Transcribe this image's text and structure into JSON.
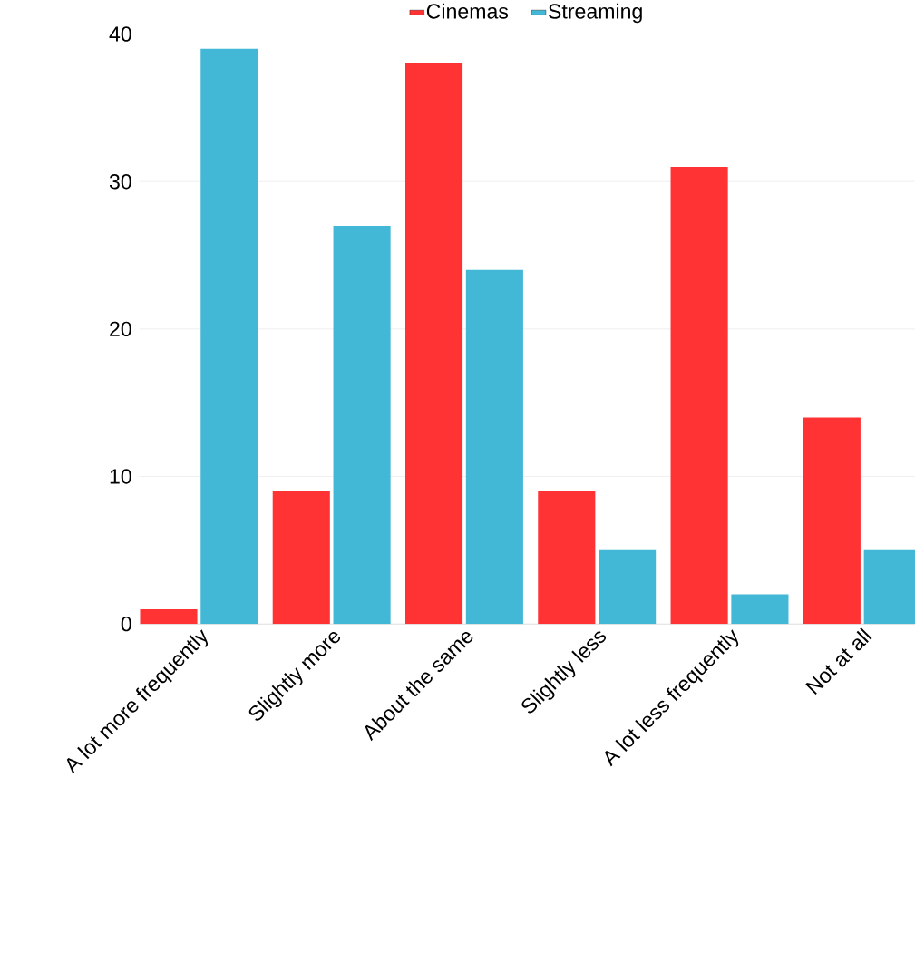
{
  "chart_data": {
    "type": "bar",
    "categories": [
      "A lot more frequently",
      "Slightly more",
      "About the same",
      "Slightly less",
      "A lot less frequently",
      "Not at all"
    ],
    "series": [
      {
        "name": "Cinemas",
        "color": "#ff3333",
        "values": [
          1,
          9,
          38,
          9,
          31,
          14
        ]
      },
      {
        "name": "Streaming",
        "color": "#42b8d6",
        "values": [
          39,
          27,
          24,
          5,
          2,
          5
        ]
      }
    ],
    "ylim": [
      0,
      40
    ],
    "yticks": [
      0,
      10,
      20,
      30,
      40
    ],
    "grid": "y",
    "legend": "top"
  }
}
